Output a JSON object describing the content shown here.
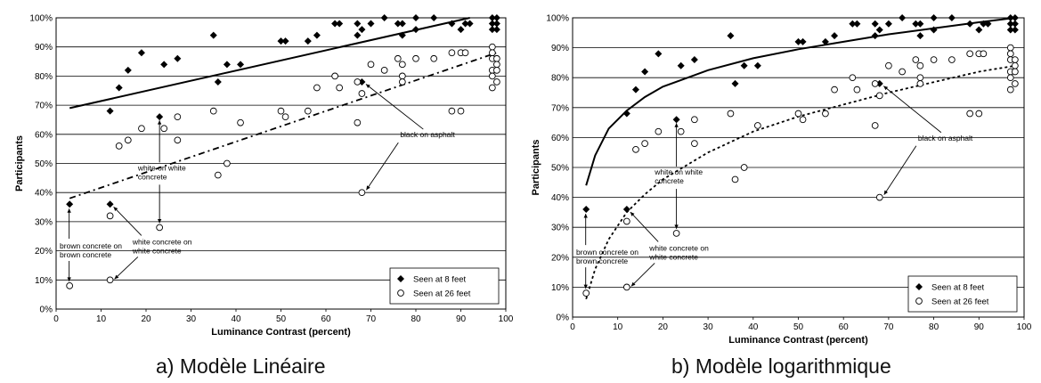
{
  "chart_data": [
    {
      "type": "scatter",
      "caption": "a)   Modèle Linéaire",
      "xlabel": "Luminance Contrast (percent)",
      "ylabel": "Participants",
      "xlim": [
        0,
        100
      ],
      "ylim": [
        0,
        100
      ],
      "xticks": [
        "0",
        "10",
        "20",
        "30",
        "40",
        "50",
        "60",
        "70",
        "80",
        "90",
        "100"
      ],
      "yticks": [
        "0%",
        "10%",
        "20%",
        "30%",
        "40%",
        "50%",
        "60%",
        "70%",
        "80%",
        "90%",
        "100%"
      ],
      "grid": "horizontal",
      "legend_position": "bottom-right",
      "series": [
        {
          "name": "Seen at 8 feet",
          "marker": "diamond-filled",
          "points": [
            [
              3,
              36
            ],
            [
              12,
              36
            ],
            [
              12,
              68
            ],
            [
              14,
              76
            ],
            [
              16,
              82
            ],
            [
              19,
              88
            ],
            [
              23,
              66
            ],
            [
              24,
              84
            ],
            [
              27,
              86
            ],
            [
              35,
              94
            ],
            [
              36,
              78
            ],
            [
              38,
              84
            ],
            [
              41,
              84
            ],
            [
              50,
              92
            ],
            [
              51,
              92
            ],
            [
              56,
              92
            ],
            [
              58,
              94
            ],
            [
              62,
              98
            ],
            [
              63,
              98
            ],
            [
              67,
              98
            ],
            [
              67,
              94
            ],
            [
              68,
              96
            ],
            [
              68,
              78
            ],
            [
              70,
              98
            ],
            [
              73,
              100
            ],
            [
              76,
              98
            ],
            [
              77,
              98
            ],
            [
              77,
              94
            ],
            [
              80,
              100
            ],
            [
              80,
              96
            ],
            [
              84,
              100
            ],
            [
              88,
              98
            ],
            [
              90,
              96
            ],
            [
              91,
              98
            ],
            [
              92,
              98
            ],
            [
              97,
              100
            ],
            [
              97,
              98
            ],
            [
              97,
              96
            ],
            [
              98,
              98
            ],
            [
              98,
              96
            ],
            [
              98,
              100
            ]
          ]
        },
        {
          "name": "Seen at 26 feet",
          "marker": "circle-open",
          "points": [
            [
              3,
              8
            ],
            [
              12,
              10
            ],
            [
              12,
              32
            ],
            [
              14,
              56
            ],
            [
              16,
              58
            ],
            [
              19,
              62
            ],
            [
              23,
              28
            ],
            [
              24,
              62
            ],
            [
              27,
              58
            ],
            [
              27,
              66
            ],
            [
              35,
              68
            ],
            [
              36,
              46
            ],
            [
              38,
              50
            ],
            [
              41,
              64
            ],
            [
              50,
              68
            ],
            [
              51,
              66
            ],
            [
              56,
              68
            ],
            [
              58,
              76
            ],
            [
              62,
              80
            ],
            [
              63,
              76
            ],
            [
              67,
              78
            ],
            [
              67,
              64
            ],
            [
              68,
              74
            ],
            [
              68,
              40
            ],
            [
              70,
              84
            ],
            [
              73,
              82
            ],
            [
              76,
              86
            ],
            [
              77,
              84
            ],
            [
              77,
              80
            ],
            [
              77,
              78
            ],
            [
              80,
              86
            ],
            [
              84,
              86
            ],
            [
              88,
              88
            ],
            [
              88,
              68
            ],
            [
              90,
              88
            ],
            [
              90,
              68
            ],
            [
              91,
              88
            ],
            [
              97,
              90
            ],
            [
              97,
              88
            ],
            [
              97,
              86
            ],
            [
              97,
              82
            ],
            [
              97,
              80
            ],
            [
              97,
              76
            ],
            [
              98,
              86
            ],
            [
              98,
              84
            ],
            [
              98,
              82
            ],
            [
              98,
              78
            ]
          ]
        }
      ],
      "fits": [
        {
          "for": "Seen at 8 feet",
          "style": "solid",
          "model": "linear",
          "points": [
            [
              3,
              69
            ],
            [
              92,
              100
            ]
          ]
        },
        {
          "for": "Seen at 26 feet",
          "style": "dash-dot",
          "model": "linear",
          "points": [
            [
              3,
              38
            ],
            [
              98,
              88
            ]
          ]
        }
      ],
      "annotations": [
        {
          "lines": [
            "black on asphalt"
          ],
          "target": [
            68,
            40
          ]
        },
        {
          "lines": [
            "white on white",
            "concrete"
          ],
          "target_up": [
            23,
            66
          ],
          "target_down": [
            23,
            28
          ]
        },
        {
          "lines": [
            "brown concrete on",
            "brown concrete"
          ],
          "target_up": [
            3,
            36
          ],
          "target_down": [
            3,
            8
          ]
        },
        {
          "lines": [
            "white concrete on",
            "white concrete"
          ],
          "target_up": [
            12,
            36
          ],
          "target_down": [
            12,
            10
          ]
        }
      ]
    },
    {
      "type": "scatter",
      "caption": "b)   Modèle logarithmique",
      "xlabel": "Luminance Contrast (percent)",
      "ylabel": "Participants",
      "xlim": [
        0,
        100
      ],
      "ylim": [
        0,
        100
      ],
      "xticks": [
        "0",
        "10",
        "20",
        "30",
        "40",
        "50",
        "60",
        "70",
        "80",
        "90",
        "100"
      ],
      "yticks": [
        "0%",
        "10%",
        "20%",
        "30%",
        "40%",
        "50%",
        "60%",
        "70%",
        "80%",
        "90%",
        "100%"
      ],
      "grid": "horizontal",
      "legend_position": "bottom-right",
      "series": [
        {
          "name": "Seen at 8 feet",
          "marker": "diamond-filled",
          "points": [
            [
              3,
              36
            ],
            [
              12,
              36
            ],
            [
              12,
              68
            ],
            [
              14,
              76
            ],
            [
              16,
              82
            ],
            [
              19,
              88
            ],
            [
              23,
              66
            ],
            [
              24,
              84
            ],
            [
              27,
              86
            ],
            [
              35,
              94
            ],
            [
              36,
              78
            ],
            [
              38,
              84
            ],
            [
              41,
              84
            ],
            [
              50,
              92
            ],
            [
              51,
              92
            ],
            [
              56,
              92
            ],
            [
              58,
              94
            ],
            [
              62,
              98
            ],
            [
              63,
              98
            ],
            [
              67,
              98
            ],
            [
              67,
              94
            ],
            [
              68,
              96
            ],
            [
              68,
              78
            ],
            [
              70,
              98
            ],
            [
              73,
              100
            ],
            [
              76,
              98
            ],
            [
              77,
              98
            ],
            [
              77,
              94
            ],
            [
              80,
              100
            ],
            [
              80,
              96
            ],
            [
              84,
              100
            ],
            [
              88,
              98
            ],
            [
              90,
              96
            ],
            [
              91,
              98
            ],
            [
              92,
              98
            ],
            [
              97,
              100
            ],
            [
              97,
              98
            ],
            [
              97,
              96
            ],
            [
              98,
              98
            ],
            [
              98,
              96
            ],
            [
              98,
              100
            ]
          ]
        },
        {
          "name": "Seen at 26 feet",
          "marker": "circle-open",
          "points": [
            [
              3,
              8
            ],
            [
              12,
              10
            ],
            [
              12,
              32
            ],
            [
              14,
              56
            ],
            [
              16,
              58
            ],
            [
              19,
              62
            ],
            [
              23,
              28
            ],
            [
              24,
              62
            ],
            [
              27,
              58
            ],
            [
              27,
              66
            ],
            [
              35,
              68
            ],
            [
              36,
              46
            ],
            [
              38,
              50
            ],
            [
              41,
              64
            ],
            [
              50,
              68
            ],
            [
              51,
              66
            ],
            [
              56,
              68
            ],
            [
              58,
              76
            ],
            [
              62,
              80
            ],
            [
              63,
              76
            ],
            [
              67,
              78
            ],
            [
              67,
              64
            ],
            [
              68,
              74
            ],
            [
              68,
              40
            ],
            [
              70,
              84
            ],
            [
              73,
              82
            ],
            [
              76,
              86
            ],
            [
              77,
              84
            ],
            [
              77,
              80
            ],
            [
              77,
              78
            ],
            [
              80,
              86
            ],
            [
              84,
              86
            ],
            [
              88,
              88
            ],
            [
              88,
              68
            ],
            [
              90,
              88
            ],
            [
              90,
              68
            ],
            [
              91,
              88
            ],
            [
              97,
              90
            ],
            [
              97,
              88
            ],
            [
              97,
              86
            ],
            [
              97,
              82
            ],
            [
              97,
              80
            ],
            [
              97,
              76
            ],
            [
              98,
              86
            ],
            [
              98,
              84
            ],
            [
              98,
              82
            ],
            [
              98,
              78
            ]
          ]
        }
      ],
      "fits": [
        {
          "for": "Seen at 8 feet",
          "style": "solid",
          "model": "logarithmic",
          "points": [
            [
              3,
              44
            ],
            [
              5,
              54
            ],
            [
              8,
              63
            ],
            [
              12,
              69
            ],
            [
              16,
              73.5
            ],
            [
              20,
              77
            ],
            [
              30,
              82.5
            ],
            [
              40,
              86.5
            ],
            [
              50,
              89.5
            ],
            [
              60,
              92
            ],
            [
              70,
              94.5
            ],
            [
              80,
              96.5
            ],
            [
              90,
              98.5
            ],
            [
              98,
              100
            ]
          ]
        },
        {
          "for": "Seen at 26 feet",
          "style": "dotted",
          "model": "logarithmic",
          "points": [
            [
              3,
              6
            ],
            [
              5,
              16
            ],
            [
              8,
              26
            ],
            [
              12,
              35
            ],
            [
              16,
              41
            ],
            [
              20,
              46
            ],
            [
              30,
              55
            ],
            [
              40,
              62
            ],
            [
              50,
              67
            ],
            [
              60,
              71
            ],
            [
              70,
              75
            ],
            [
              80,
              78.5
            ],
            [
              90,
              82
            ],
            [
              98,
              84
            ]
          ]
        }
      ],
      "annotations": [
        {
          "lines": [
            "black on asphalt"
          ],
          "target": [
            68,
            40
          ]
        },
        {
          "lines": [
            "white on white",
            "concrete"
          ],
          "target_up": [
            23,
            66
          ],
          "target_down": [
            23,
            28
          ]
        },
        {
          "lines": [
            "brown concrete on",
            "brown concrete"
          ],
          "target_up": [
            3,
            36
          ],
          "target_down": [
            3,
            8
          ]
        },
        {
          "lines": [
            "white concrete on",
            "white concrete"
          ],
          "target_up": [
            12,
            36
          ],
          "target_down": [
            12,
            10
          ]
        }
      ]
    }
  ]
}
